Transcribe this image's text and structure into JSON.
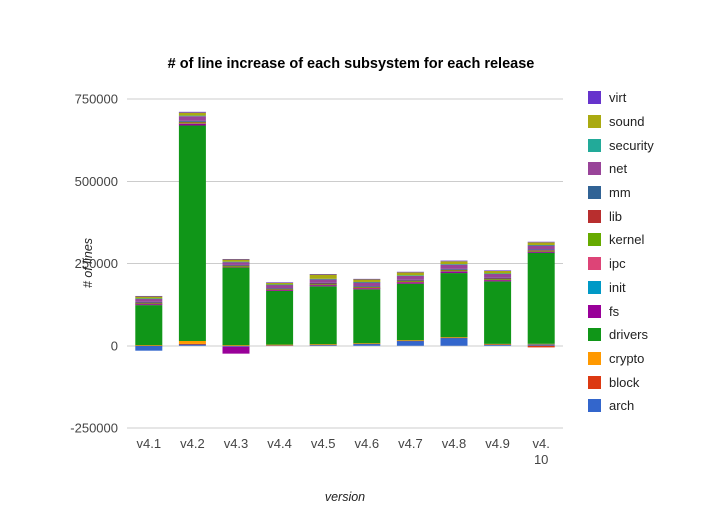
{
  "chart_data": {
    "type": "bar",
    "stacked": true,
    "title": "# of line increase of each subsystem for each release",
    "xlabel": "version",
    "ylabel": "# of lines",
    "ylim": [
      -250000,
      750000
    ],
    "yticks": [
      750000,
      500000,
      250000,
      0,
      -250000
    ],
    "grid": true,
    "legend_position": "right",
    "categories": [
      "v4.1",
      "v4.2",
      "v4.3",
      "v4.4",
      "v4.5",
      "v4.6",
      "v4.7",
      "v4.8",
      "v4.9",
      "v4.10"
    ],
    "category_tick_lines": [
      [
        "v4.1"
      ],
      [
        "v4.2"
      ],
      [
        "v4.3"
      ],
      [
        "v4.4"
      ],
      [
        "v4.5"
      ],
      [
        "v4.6"
      ],
      [
        "v4.7"
      ],
      [
        "v4.8"
      ],
      [
        "v4.9"
      ],
      [
        "v4.",
        "10"
      ]
    ],
    "series": [
      {
        "name": "arch",
        "color": "#3366cc",
        "values": [
          -15000,
          4000,
          -3000,
          2000,
          3000,
          6000,
          15000,
          24000,
          4000,
          5000
        ]
      },
      {
        "name": "block",
        "color": "#dc3912",
        "values": [
          1000,
          1500,
          800,
          600,
          700,
          800,
          900,
          1000,
          900,
          -5000
        ]
      },
      {
        "name": "crypto",
        "color": "#ff9900",
        "values": [
          500,
          9000,
          700,
          800,
          900,
          700,
          800,
          900,
          800,
          900
        ]
      },
      {
        "name": "drivers",
        "color": "#109618",
        "values": [
          122000,
          655000,
          238000,
          163000,
          176000,
          164000,
          172000,
          195000,
          190000,
          276000
        ]
      },
      {
        "name": "fs",
        "color": "#990099",
        "values": [
          4000,
          6000,
          -21000,
          3500,
          4500,
          4000,
          5000,
          5500,
          4500,
          4000
        ]
      },
      {
        "name": "init",
        "color": "#0099c6",
        "values": [
          200,
          300,
          200,
          150,
          200,
          150,
          200,
          200,
          200,
          200
        ]
      },
      {
        "name": "ipc",
        "color": "#dd4477",
        "values": [
          100,
          200,
          100,
          100,
          150,
          100,
          100,
          150,
          100,
          100
        ]
      },
      {
        "name": "kernel",
        "color": "#66aa00",
        "values": [
          2500,
          3500,
          2800,
          2600,
          2900,
          2700,
          3000,
          3200,
          3000,
          3100
        ]
      },
      {
        "name": "lib",
        "color": "#b82e2e",
        "values": [
          800,
          1200,
          900,
          700,
          800,
          900,
          1000,
          1100,
          1000,
          1000
        ]
      },
      {
        "name": "mm",
        "color": "#316395",
        "values": [
          2500,
          3000,
          2200,
          2000,
          2400,
          2300,
          2500,
          2600,
          2400,
          2500
        ]
      },
      {
        "name": "net",
        "color": "#994499",
        "values": [
          9000,
          14000,
          8500,
          9500,
          10500,
          11000,
          12000,
          13000,
          11500,
          12000
        ]
      },
      {
        "name": "security",
        "color": "#22aa99",
        "values": [
          1200,
          1800,
          1300,
          1100,
          1400,
          1200,
          1500,
          1600,
          1400,
          1500
        ]
      },
      {
        "name": "sound",
        "color": "#aaaa11",
        "values": [
          6000,
          9000,
          7000,
          5500,
          13000,
          8000,
          9000,
          8500,
          7500,
          8000
        ]
      },
      {
        "name": "virt",
        "color": "#6633cc",
        "values": [
          1500,
          2500,
          1200,
          1300,
          1600,
          1400,
          1800,
          2000,
          1700,
          1800
        ]
      }
    ],
    "legend_order_top_to_bottom": [
      "virt",
      "sound",
      "security",
      "net",
      "mm",
      "lib",
      "kernel",
      "ipc",
      "init",
      "fs",
      "drivers",
      "crypto",
      "block",
      "arch"
    ]
  },
  "colors": {
    "background": "#ffffff",
    "grid": "#cccccc",
    "tick_text": "#444444",
    "title_text": "#000000",
    "axis_label_text": "#222222"
  }
}
